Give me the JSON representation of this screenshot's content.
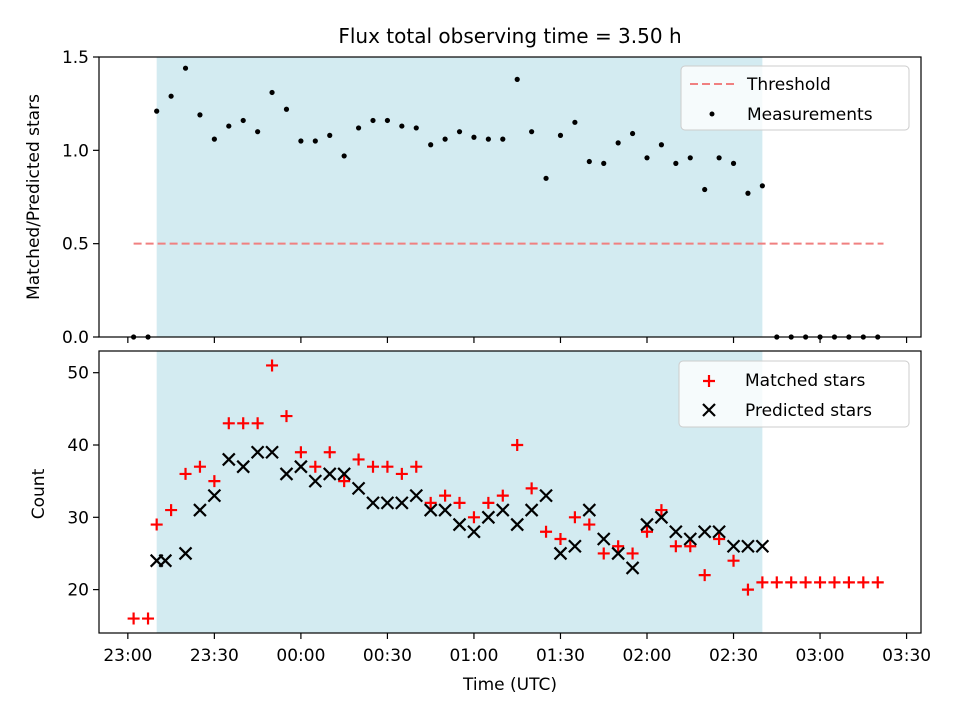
{
  "chart_data": [
    {
      "type": "scatter",
      "title": "Flux total observing time = 3.50 h",
      "xlabel": "",
      "ylabel": "Matched/Predicted stars",
      "ylim": [
        0,
        1.5
      ],
      "xlim": [
        -10,
        275
      ],
      "x_unit": "minutes after 23:00 UTC",
      "yticks": [
        "0.0",
        "0.5",
        "1.0",
        "1.5"
      ],
      "shaded_region": {
        "start": 10,
        "end": 220,
        "color": "#d3ebf1"
      },
      "threshold": {
        "name": "Threshold",
        "value": 0.5,
        "x_start": 2,
        "x_end": 262,
        "color": "#f08080"
      },
      "legend": {
        "position": "top-right",
        "entries": [
          "Threshold",
          "Measurements"
        ]
      },
      "series": [
        {
          "name": "Measurements",
          "color": "#000000",
          "x": [
            2,
            7,
            10,
            15,
            20,
            25,
            30,
            35,
            40,
            45,
            50,
            55,
            60,
            65,
            70,
            75,
            80,
            85,
            90,
            95,
            100,
            105,
            110,
            115,
            120,
            125,
            130,
            135,
            140,
            145,
            150,
            155,
            160,
            165,
            170,
            175,
            180,
            185,
            190,
            195,
            200,
            205,
            210,
            215,
            220,
            225,
            230,
            235,
            240,
            245,
            250,
            255,
            260
          ],
          "values": [
            0,
            0,
            1.21,
            1.29,
            1.44,
            1.19,
            1.06,
            1.13,
            1.16,
            1.1,
            1.31,
            1.22,
            1.05,
            1.05,
            1.08,
            0.97,
            1.12,
            1.16,
            1.16,
            1.13,
            1.12,
            1.03,
            1.06,
            1.1,
            1.07,
            1.06,
            1.06,
            1.38,
            1.1,
            0.85,
            1.08,
            1.15,
            0.94,
            0.93,
            1.04,
            1.09,
            0.96,
            1.03,
            0.93,
            0.96,
            0.79,
            0.96,
            0.93,
            0.77,
            0.81,
            0,
            0,
            0,
            0,
            0,
            0,
            0,
            0
          ]
        }
      ]
    },
    {
      "type": "scatter",
      "title": "",
      "xlabel": "Time (UTC)",
      "ylabel": "Count",
      "ylim": [
        14,
        53
      ],
      "xlim": [
        -10,
        275
      ],
      "yticks": [
        "20",
        "30",
        "40",
        "50"
      ],
      "xticks": [
        {
          "minutes": 0,
          "label": "23:00"
        },
        {
          "minutes": 30,
          "label": "23:30"
        },
        {
          "minutes": 60,
          "label": "00:00"
        },
        {
          "minutes": 90,
          "label": "00:30"
        },
        {
          "minutes": 120,
          "label": "01:00"
        },
        {
          "minutes": 150,
          "label": "01:30"
        },
        {
          "minutes": 180,
          "label": "02:00"
        },
        {
          "minutes": 210,
          "label": "02:30"
        },
        {
          "minutes": 240,
          "label": "03:00"
        },
        {
          "minutes": 270,
          "label": "03:30"
        }
      ],
      "shaded_region": {
        "start": 10,
        "end": 220,
        "color": "#d3ebf1"
      },
      "legend": {
        "position": "top-right",
        "entries": [
          "Matched stars",
          "Predicted stars"
        ]
      },
      "series": [
        {
          "name": "Matched stars",
          "marker": "plus",
          "color": "#ff0000",
          "x": [
            2,
            7,
            10,
            15,
            20,
            25,
            30,
            35,
            40,
            45,
            50,
            55,
            60,
            65,
            70,
            75,
            80,
            85,
            90,
            95,
            100,
            105,
            110,
            115,
            120,
            125,
            130,
            135,
            140,
            145,
            150,
            155,
            160,
            165,
            170,
            175,
            180,
            185,
            190,
            195,
            200,
            205,
            210,
            215,
            220,
            225,
            230,
            235,
            240,
            245,
            250,
            255,
            260
          ],
          "values": [
            16,
            16,
            29,
            31,
            36,
            37,
            35,
            43,
            43,
            43,
            51,
            44,
            39,
            37,
            39,
            35,
            38,
            37,
            37,
            36,
            37,
            32,
            33,
            32,
            30,
            32,
            33,
            40,
            34,
            28,
            27,
            30,
            29,
            25,
            26,
            25,
            28,
            31,
            26,
            26,
            22,
            27,
            24,
            20,
            21,
            21,
            21,
            21,
            21,
            21,
            21,
            21,
            21
          ]
        },
        {
          "name": "Predicted stars",
          "marker": "x",
          "color": "#000000",
          "x": [
            10,
            13,
            20,
            25,
            30,
            35,
            40,
            45,
            50,
            55,
            60,
            65,
            70,
            75,
            80,
            85,
            90,
            95,
            100,
            105,
            110,
            115,
            120,
            125,
            130,
            135,
            140,
            145,
            150,
            155,
            160,
            165,
            170,
            175,
            180,
            185,
            190,
            195,
            200,
            205,
            210,
            215,
            220
          ],
          "values": [
            24,
            24,
            25,
            31,
            33,
            38,
            37,
            39,
            39,
            36,
            37,
            35,
            36,
            36,
            34,
            32,
            32,
            32,
            33,
            31,
            31,
            29,
            28,
            30,
            31,
            29,
            31,
            33,
            25,
            26,
            31,
            27,
            25,
            23,
            29,
            30,
            28,
            27,
            28,
            28,
            26,
            26,
            26
          ]
        }
      ]
    }
  ]
}
